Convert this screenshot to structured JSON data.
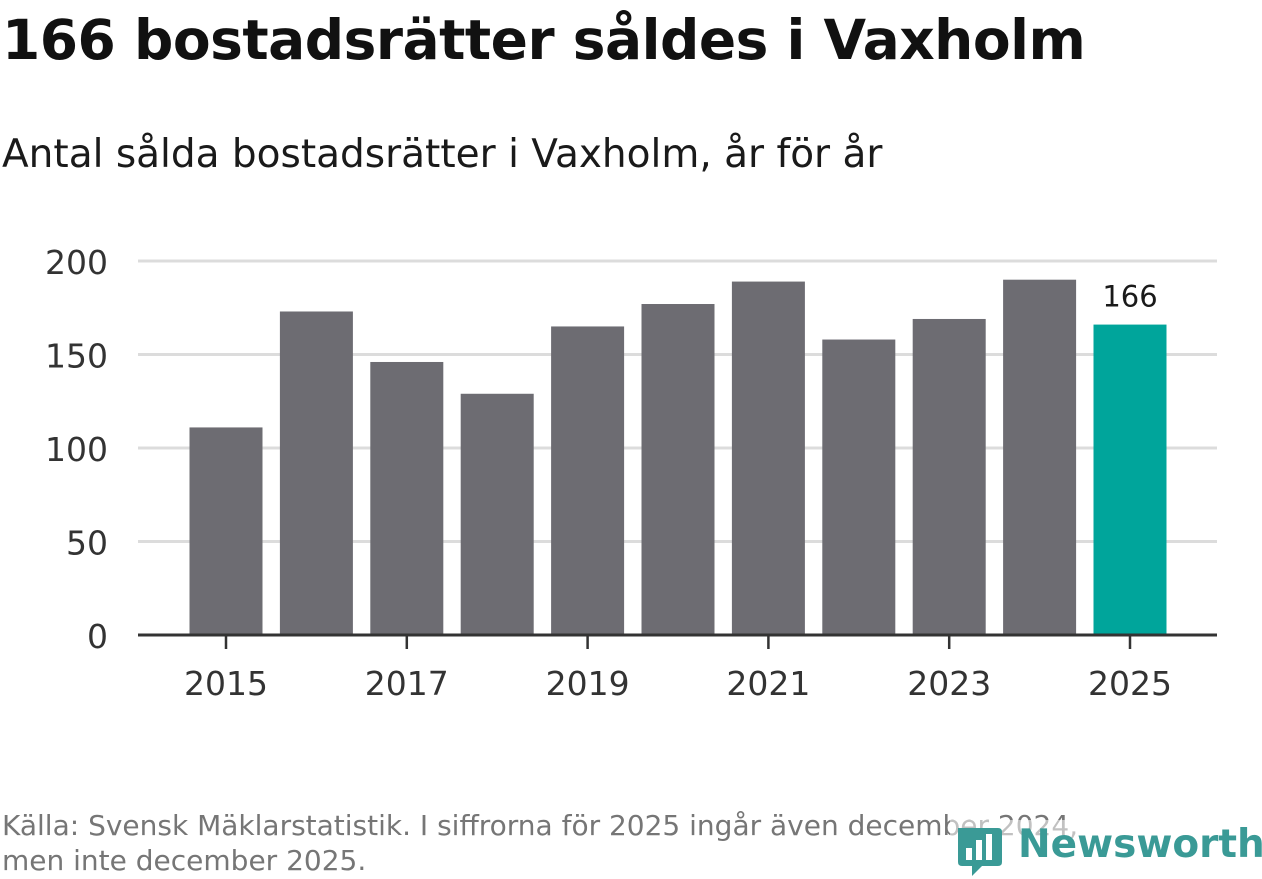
{
  "chart_data": {
    "type": "bar",
    "title": "166 bostadsrätter såldes i Vaxholm",
    "subtitle": "Antal sålda bostadsrätter i Vaxholm, år för år",
    "categories": [
      "2015",
      "2016",
      "2017",
      "2018",
      "2019",
      "2020",
      "2021",
      "2022",
      "2023",
      "2024",
      "2025"
    ],
    "values": [
      111,
      173,
      146,
      129,
      165,
      177,
      189,
      158,
      169,
      190,
      166
    ],
    "highlight_index": 10,
    "value_label": "166",
    "x_tick_labels": [
      "2015",
      "2017",
      "2019",
      "2021",
      "2023",
      "2025"
    ],
    "y_ticks": [
      0,
      50,
      100,
      150,
      200
    ],
    "ylim": [
      0,
      200
    ],
    "xlabel": "",
    "ylabel": "",
    "grid": true,
    "colors": {
      "bar": "#6d6c72",
      "highlight": "#00a59b",
      "grid": "#dcdcdc",
      "axis": "#333333"
    }
  },
  "footer": {
    "source_line1": "Källa: Svensk Mäklarstatistik. I siffrorna för 2025 ingår även december 2024,",
    "source_line2": "men inte december 2025."
  },
  "logo": {
    "text": "Newsworthy",
    "icon": "newsworthy-chart-icon",
    "color": "#3a9a96"
  }
}
